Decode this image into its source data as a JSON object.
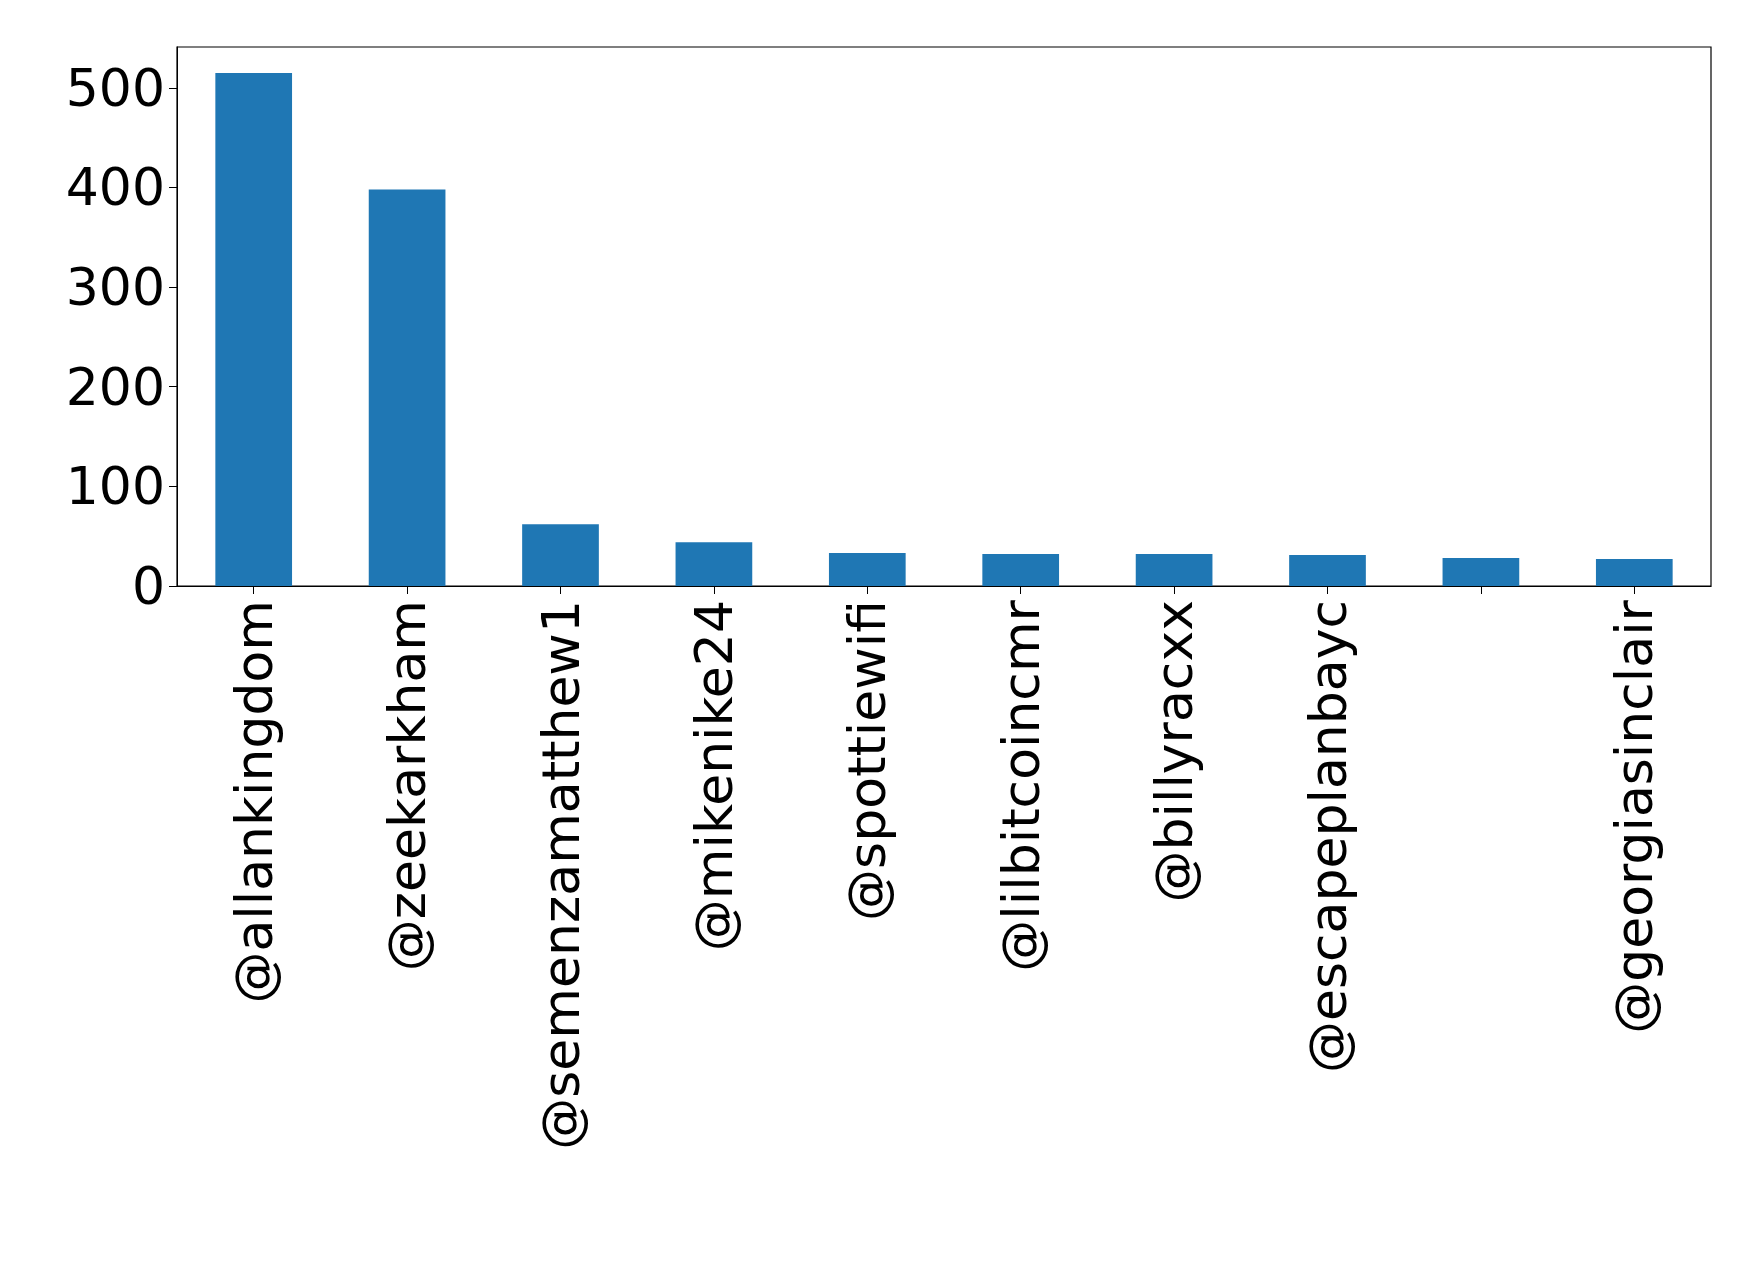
{
  "chart_data": {
    "type": "bar",
    "categories": [
      "@allankingdom",
      "@zeekarkham",
      "@semenzamatthew1",
      "@mikenike24",
      "@spottiewifi",
      "@lilbitcoincmr",
      "@billyracxx",
      "@escapeplanbayc",
      null,
      "@georgiasinclair"
    ],
    "values": [
      515,
      398,
      62,
      44,
      33,
      32,
      32,
      31,
      28,
      27
    ],
    "color": "#1f77b4",
    "ylim": [
      0,
      541
    ],
    "yticks": [
      0,
      100,
      200,
      300,
      400,
      500
    ]
  }
}
